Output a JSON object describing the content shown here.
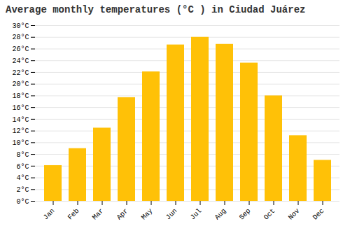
{
  "chart_data": {
    "type": "bar",
    "title": "Average monthly temperatures (°C ) in Ciudad Juárez",
    "categories": [
      "Jan",
      "Feb",
      "Mar",
      "Apr",
      "May",
      "Jun",
      "Jul",
      "Aug",
      "Sep",
      "Oct",
      "Nov",
      "Dec"
    ],
    "values": [
      6.1,
      9.0,
      12.5,
      17.7,
      22.1,
      26.7,
      28.0,
      26.8,
      23.6,
      18.0,
      11.2,
      7.0
    ],
    "color": "#FFC107",
    "ylim": [
      0,
      30
    ],
    "yticks": [
      {
        "value": 0,
        "label": "0°C"
      },
      {
        "value": 2,
        "label": "2°C"
      },
      {
        "value": 4,
        "label": "4°C"
      },
      {
        "value": 6,
        "label": "6°C"
      },
      {
        "value": 8,
        "label": "8°C"
      },
      {
        "value": 10,
        "label": "10°C"
      },
      {
        "value": 12,
        "label": "12°C"
      },
      {
        "value": 14,
        "label": "14°C"
      },
      {
        "value": 16,
        "label": "16°C"
      },
      {
        "value": 18,
        "label": "18°C"
      },
      {
        "value": 20,
        "label": "20°C"
      },
      {
        "value": 22,
        "label": "22°C"
      },
      {
        "value": 24,
        "label": "24°C"
      },
      {
        "value": 26,
        "label": "26°C"
      },
      {
        "value": 28,
        "label": "28°C"
      },
      {
        "value": 30,
        "label": "30°C"
      }
    ],
    "grid": true
  }
}
